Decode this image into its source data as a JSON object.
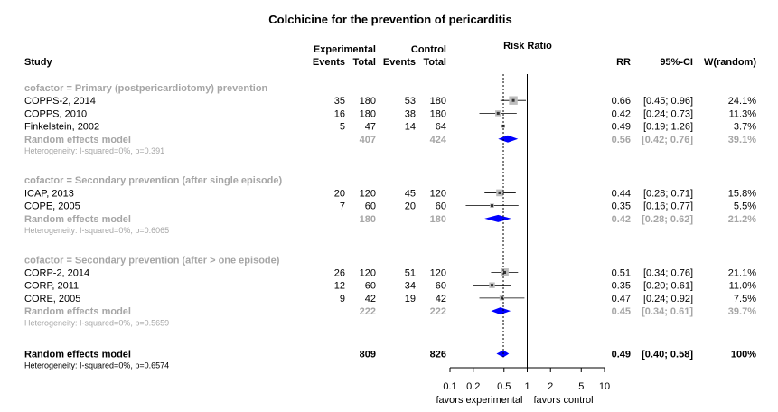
{
  "title": "Colchicine for the prevention of pericarditis",
  "header": {
    "study": "Study",
    "experimental": "Experimental",
    "control": "Control",
    "events": "Events",
    "total": "Total",
    "risk_ratio": "Risk Ratio",
    "rr": "RR",
    "ci": "95%-CI",
    "weight": "W(random)"
  },
  "chart_data": {
    "type": "forest",
    "title": "Colchicine for the prevention of pericarditis",
    "scale": "log",
    "xlim": [
      0.1,
      10
    ],
    "x_ticks": [
      "0.1",
      "0.2",
      "0.5",
      "1",
      "2",
      "5",
      "10"
    ],
    "x_tick_values": [
      0.1,
      0.2,
      0.5,
      1,
      2,
      5,
      10
    ],
    "reference_line": 1,
    "overall_line": 0.49,
    "favors_left": "favors experimental",
    "favors_right": "favors control",
    "groups": [
      {
        "label": "cofactor = Primary (postpericardiotomy) prevention",
        "studies": [
          {
            "name": "COPPS-2, 2014",
            "e_events": "35",
            "e_total": "180",
            "c_events": "53",
            "c_total": "180",
            "rr": 0.66,
            "lo": 0.45,
            "hi": 0.96,
            "rr_text": "0.66",
            "ci_text": "[0.45; 0.96]",
            "weight": 24.1,
            "weight_text": "24.1%"
          },
          {
            "name": "COPPS, 2010",
            "e_events": "16",
            "e_total": "180",
            "c_events": "38",
            "c_total": "180",
            "rr": 0.42,
            "lo": 0.24,
            "hi": 0.73,
            "rr_text": "0.42",
            "ci_text": "[0.24; 0.73]",
            "weight": 11.3,
            "weight_text": "11.3%"
          },
          {
            "name": "Finkelstein, 2002",
            "e_events": "5",
            "e_total": "47",
            "c_events": "14",
            "c_total": "64",
            "rr": 0.49,
            "lo": 0.19,
            "hi": 1.26,
            "rr_text": "0.49",
            "ci_text": "[0.19; 1.26]",
            "weight": 3.7,
            "weight_text": "3.7%"
          }
        ],
        "summary": {
          "label": "Random effects model",
          "e_total": "407",
          "c_total": "424",
          "rr": 0.56,
          "lo": 0.42,
          "hi": 0.76,
          "rr_text": "0.56",
          "ci_text": "[0.42; 0.76]",
          "weight_text": "39.1%"
        },
        "heterogeneity": "Heterogeneity: I-squared=0%, p=0.391"
      },
      {
        "label": "cofactor = Secondary prevention (after single episode)",
        "studies": [
          {
            "name": "ICAP, 2013",
            "e_events": "20",
            "e_total": "120",
            "c_events": "45",
            "c_total": "120",
            "rr": 0.44,
            "lo": 0.28,
            "hi": 0.71,
            "rr_text": "0.44",
            "ci_text": "[0.28; 0.71]",
            "weight": 15.8,
            "weight_text": "15.8%"
          },
          {
            "name": "COPE, 2005",
            "e_events": "7",
            "e_total": "60",
            "c_events": "20",
            "c_total": "60",
            "rr": 0.35,
            "lo": 0.16,
            "hi": 0.77,
            "rr_text": "0.35",
            "ci_text": "[0.16; 0.77]",
            "weight": 5.5,
            "weight_text": "5.5%"
          }
        ],
        "summary": {
          "label": "Random effects model",
          "e_total": "180",
          "c_total": "180",
          "rr": 0.42,
          "lo": 0.28,
          "hi": 0.62,
          "rr_text": "0.42",
          "ci_text": "[0.28; 0.62]",
          "weight_text": "21.2%"
        },
        "heterogeneity": "Heterogeneity: I-squared=0%, p=0.6065"
      },
      {
        "label": "cofactor = Secondary prevention (after > one episode)",
        "studies": [
          {
            "name": "CORP-2, 2014",
            "e_events": "26",
            "e_total": "120",
            "c_events": "51",
            "c_total": "120",
            "rr": 0.51,
            "lo": 0.34,
            "hi": 0.76,
            "rr_text": "0.51",
            "ci_text": "[0.34; 0.76]",
            "weight": 21.1,
            "weight_text": "21.1%"
          },
          {
            "name": "CORP, 2011",
            "e_events": "12",
            "e_total": "60",
            "c_events": "34",
            "c_total": "60",
            "rr": 0.35,
            "lo": 0.2,
            "hi": 0.61,
            "rr_text": "0.35",
            "ci_text": "[0.20; 0.61]",
            "weight": 11.0,
            "weight_text": "11.0%"
          },
          {
            "name": "CORE, 2005",
            "e_events": "9",
            "e_total": "42",
            "c_events": "19",
            "c_total": "42",
            "rr": 0.47,
            "lo": 0.24,
            "hi": 0.92,
            "rr_text": "0.47",
            "ci_text": "[0.24; 0.92]",
            "weight": 7.5,
            "weight_text": "7.5%"
          }
        ],
        "summary": {
          "label": "Random effects model",
          "e_total": "222",
          "c_total": "222",
          "rr": 0.45,
          "lo": 0.34,
          "hi": 0.61,
          "rr_text": "0.45",
          "ci_text": "[0.34; 0.61]",
          "weight_text": "39.7%"
        },
        "heterogeneity": "Heterogeneity: I-squared=0%, p=0.5659"
      }
    ],
    "overall": {
      "label": "Random effects model",
      "e_total": "809",
      "c_total": "826",
      "rr": 0.49,
      "lo": 0.4,
      "hi": 0.58,
      "rr_text": "0.49",
      "ci_text": "[0.40; 0.58]",
      "weight_text": "100%"
    },
    "overall_heterogeneity": "Heterogeneity: I-squared=0%, p=0.6574"
  }
}
